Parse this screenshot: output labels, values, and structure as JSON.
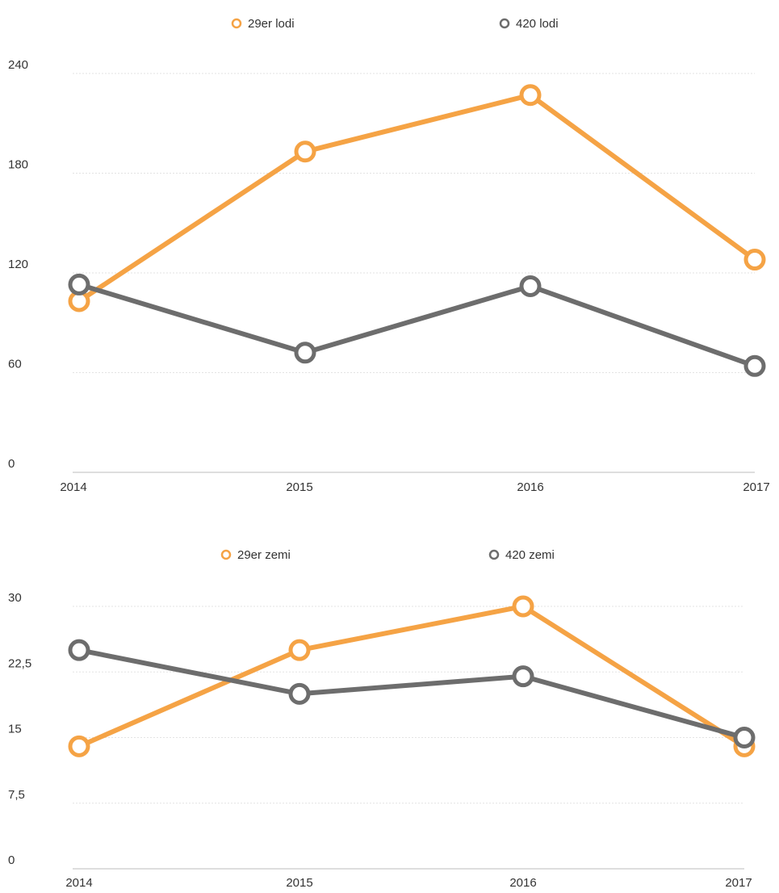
{
  "chart_data": [
    {
      "type": "line",
      "title": "",
      "xlabel": "",
      "ylabel": "",
      "categories": [
        "2014",
        "2015",
        "2016",
        "2017"
      ],
      "yticks": [
        "0",
        "60",
        "120",
        "180",
        "240"
      ],
      "ylim": [
        0,
        240
      ],
      "grid": true,
      "legend_position": "top-center",
      "series": [
        {
          "name": "29er lodi",
          "color": "#f5a345",
          "values": [
            103,
            193,
            227,
            128
          ]
        },
        {
          "name": "420 lodi",
          "color": "#6d6d6d",
          "values": [
            113,
            72,
            112,
            64
          ]
        }
      ]
    },
    {
      "type": "line",
      "title": "",
      "xlabel": "",
      "ylabel": "",
      "categories": [
        "2014",
        "2015",
        "2016",
        "2017"
      ],
      "yticks": [
        "0",
        "7,5",
        "15",
        "22,5",
        "30"
      ],
      "ylim": [
        0,
        30
      ],
      "grid": true,
      "legend_position": "top-center",
      "series": [
        {
          "name": "29er zemi",
          "color": "#f5a345",
          "values": [
            14,
            25,
            30,
            14
          ]
        },
        {
          "name": "420 zemi",
          "color": "#6d6d6d",
          "values": [
            25,
            20,
            22,
            15
          ]
        }
      ]
    }
  ]
}
